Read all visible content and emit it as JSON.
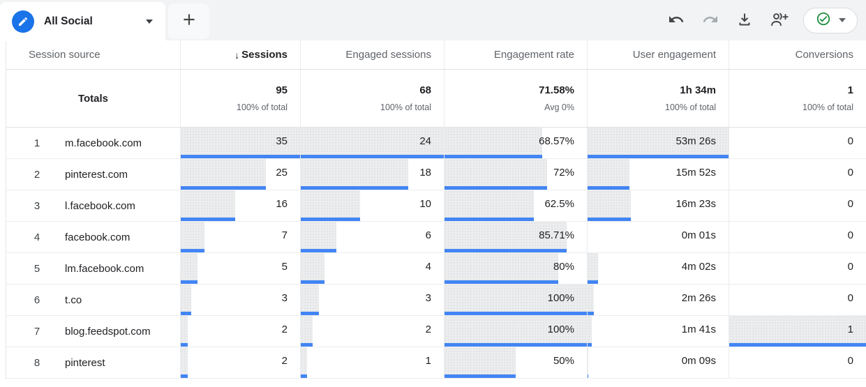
{
  "toolbar": {
    "tab_label": "All Social",
    "icons": {
      "tab": "edit-pencil-icon",
      "add": "plus-icon",
      "history": [
        "undo-icon",
        "redo-icon"
      ],
      "export": "download-icon",
      "share": "add-people-icon",
      "status": "check-circle-icon"
    },
    "colors": {
      "tab_icon_bg": "#1a73e8",
      "status_green": "#1e8e3e",
      "bar_blue": "#4285f4"
    }
  },
  "table": {
    "columns": [
      "Session source",
      "Sessions",
      "Engaged sessions",
      "Engagement rate",
      "User engagement",
      "Conversions"
    ],
    "sort": {
      "column": "Sessions",
      "direction": "descending",
      "arrow": "↓"
    },
    "totals": {
      "label": "Totals",
      "cells": [
        {
          "value": "95",
          "sub": "100% of total"
        },
        {
          "value": "68",
          "sub": "100% of total"
        },
        {
          "value": "71.58%",
          "sub": "Avg 0%"
        },
        {
          "value": "1h 34m",
          "sub": "100% of total"
        },
        {
          "value": "1",
          "sub": "100% of total"
        }
      ]
    },
    "rows": [
      {
        "index": "1",
        "source": "m.facebook.com",
        "metrics": [
          {
            "v": "35",
            "pct": 100
          },
          {
            "v": "24",
            "pct": 100
          },
          {
            "v": "68.57%",
            "pct": 68.57
          },
          {
            "v": "53m 26s",
            "pct": 100
          },
          {
            "v": "0",
            "pct": 0
          }
        ]
      },
      {
        "index": "2",
        "source": "pinterest.com",
        "metrics": [
          {
            "v": "25",
            "pct": 71.4
          },
          {
            "v": "18",
            "pct": 75
          },
          {
            "v": "72%",
            "pct": 72
          },
          {
            "v": "15m 52s",
            "pct": 29.7
          },
          {
            "v": "0",
            "pct": 0
          }
        ]
      },
      {
        "index": "3",
        "source": "l.facebook.com",
        "metrics": [
          {
            "v": "16",
            "pct": 45.7
          },
          {
            "v": "10",
            "pct": 41.7
          },
          {
            "v": "62.5%",
            "pct": 62.5
          },
          {
            "v": "16m 23s",
            "pct": 30.7
          },
          {
            "v": "0",
            "pct": 0
          }
        ]
      },
      {
        "index": "4",
        "source": "facebook.com",
        "metrics": [
          {
            "v": "7",
            "pct": 20
          },
          {
            "v": "6",
            "pct": 25
          },
          {
            "v": "85.71%",
            "pct": 85.71
          },
          {
            "v": "0m 01s",
            "pct": 0
          },
          {
            "v": "0",
            "pct": 0
          }
        ]
      },
      {
        "index": "5",
        "source": "lm.facebook.com",
        "metrics": [
          {
            "v": "5",
            "pct": 14.3
          },
          {
            "v": "4",
            "pct": 16.7
          },
          {
            "v": "80%",
            "pct": 80
          },
          {
            "v": "4m 02s",
            "pct": 7.5
          },
          {
            "v": "0",
            "pct": 0
          }
        ]
      },
      {
        "index": "6",
        "source": "t.co",
        "metrics": [
          {
            "v": "3",
            "pct": 8.6
          },
          {
            "v": "3",
            "pct": 12.5
          },
          {
            "v": "100%",
            "pct": 100
          },
          {
            "v": "2m 26s",
            "pct": 4.6
          },
          {
            "v": "0",
            "pct": 0
          }
        ]
      },
      {
        "index": "7",
        "source": "blog.feedspot.com",
        "metrics": [
          {
            "v": "2",
            "pct": 5.7
          },
          {
            "v": "2",
            "pct": 8.3
          },
          {
            "v": "100%",
            "pct": 100
          },
          {
            "v": "1m 41s",
            "pct": 3.2
          },
          {
            "v": "1",
            "pct": 100
          }
        ]
      },
      {
        "index": "8",
        "source": "pinterest",
        "metrics": [
          {
            "v": "2",
            "pct": 5.7
          },
          {
            "v": "1",
            "pct": 4.2
          },
          {
            "v": "50%",
            "pct": 50
          },
          {
            "v": "0m 09s",
            "pct": 0.3
          },
          {
            "v": "0",
            "pct": 0
          }
        ]
      }
    ]
  }
}
